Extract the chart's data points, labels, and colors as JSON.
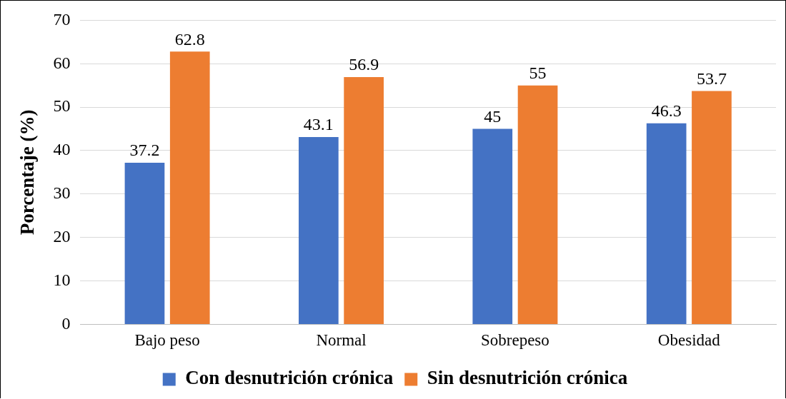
{
  "chart_data": {
    "type": "bar",
    "ylabel": "Porcentaje (%)",
    "categories": [
      "Bajo peso",
      "Normal",
      "Sobrepeso",
      "Obesidad"
    ],
    "series": [
      {
        "name": "Con desnutrición crónica",
        "color": "#4472c4",
        "values": [
          37.2,
          43.1,
          45,
          46.3
        ]
      },
      {
        "name": "Sin desnutrición crónica",
        "color": "#ed7d31",
        "values": [
          62.8,
          56.9,
          55,
          53.7
        ]
      }
    ],
    "ylim": [
      0,
      70
    ],
    "yticks": [
      0,
      10,
      20,
      30,
      40,
      50,
      60,
      70
    ],
    "grid": "y",
    "legend": "bottom",
    "data_labels": true
  }
}
